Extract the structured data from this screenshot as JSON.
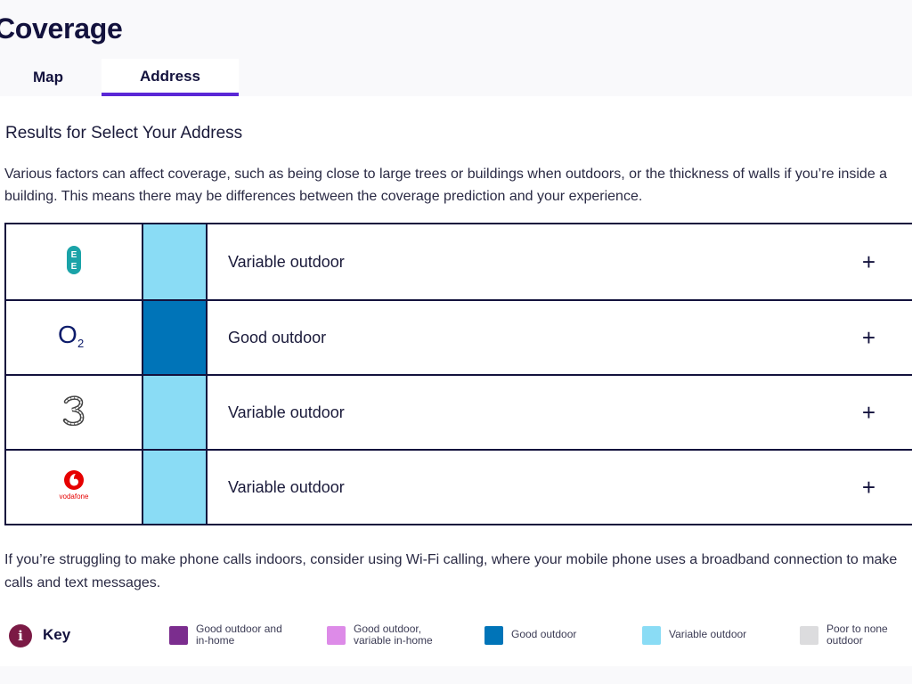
{
  "page": {
    "title": "Coverage"
  },
  "tabs": [
    {
      "label": "Map",
      "active": false
    },
    {
      "label": "Address",
      "active": true
    }
  ],
  "results": {
    "heading": "Results for Select Your Address",
    "intro": "Various factors can affect coverage, such as being close to large trees or buildings when outdoors, or the thickness of walls if you’re inside a building. This means there may be differences between the coverage prediction and your experience."
  },
  "operators": [
    {
      "icon": "ee-logo-icon",
      "status": "Variable outdoor",
      "color": "#8adcf5",
      "expand": "+"
    },
    {
      "icon": "o2-logo-icon",
      "status": "Good outdoor",
      "color": "#0074b8",
      "expand": "+"
    },
    {
      "icon": "three-logo-icon",
      "status": "Variable outdoor",
      "color": "#8adcf5",
      "expand": "+"
    },
    {
      "icon": "vodafone-logo-icon",
      "status": "Variable outdoor",
      "color": "#8adcf5",
      "expand": "+",
      "brand_text": "vodafone"
    }
  ],
  "footnote": "If you’re struggling to make phone calls indoors, consider using Wi-Fi calling, where your mobile phone uses a broadband connection to make calls and text messages.",
  "key": {
    "title": "Key",
    "icon": "info-icon",
    "items": [
      {
        "label": "Good outdoor and in-home",
        "color": "#7b2d8e"
      },
      {
        "label": "Good outdoor, variable in-home",
        "color": "#dd8be8"
      },
      {
        "label": "Good outdoor",
        "color": "#0074b8"
      },
      {
        "label": "Variable outdoor",
        "color": "#8adcf5"
      },
      {
        "label": "Poor to none outdoor",
        "color": "#dcdcde"
      }
    ]
  }
}
